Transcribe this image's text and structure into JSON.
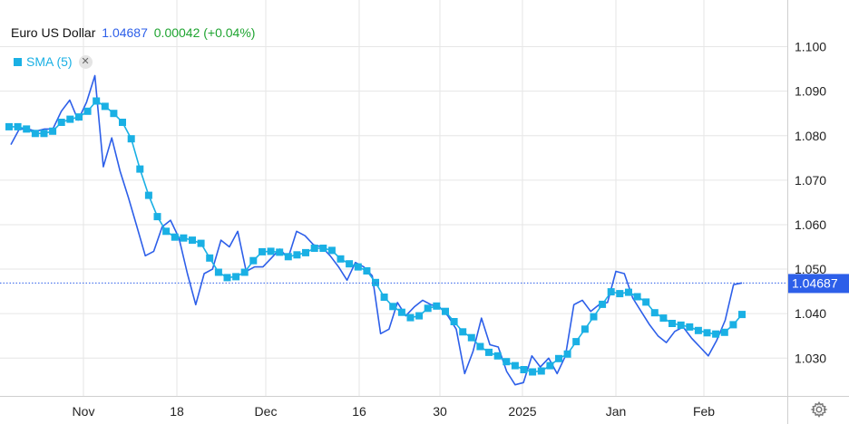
{
  "header": {
    "title": "Euro US Dollar",
    "price": "1.04687",
    "change": "0.00042 (+0.04%)"
  },
  "indicator": {
    "label": "SMA (5)",
    "close_icon": "close-icon"
  },
  "settings_icon": "gear-icon",
  "colors": {
    "price_line": "#2d5fe9",
    "sma": "#1ab0e4",
    "change_positive": "#1fa431",
    "grid": "#e6e6e6"
  },
  "chart_data": {
    "type": "line",
    "y_ticks": [
      "1.100",
      "1.090",
      "1.080",
      "1.070",
      "1.060",
      "1.050",
      "1.040",
      "1.030"
    ],
    "x_ticks": [
      "Nov",
      "18",
      "Dec",
      "16",
      "30",
      "2025",
      "Jan",
      "Feb"
    ],
    "ylim": [
      1.0215,
      1.1105
    ],
    "last_price_label": "1.04687",
    "grid": true,
    "series": [
      {
        "name": "Euro US Dollar",
        "style": "line",
        "values": [
          1.078,
          1.0815,
          1.0815,
          1.081,
          1.0815,
          1.0815,
          1.0855,
          1.088,
          1.0835,
          1.0875,
          1.0935,
          1.073,
          1.0795,
          1.072,
          1.066,
          1.0595,
          1.053,
          1.054,
          1.0595,
          1.061,
          1.057,
          1.049,
          1.042,
          1.049,
          1.05,
          1.0565,
          1.055,
          1.0585,
          1.0495,
          1.0505,
          1.0505,
          1.0525,
          1.0545,
          1.0525,
          1.0585,
          1.0575,
          1.0555,
          1.055,
          1.053,
          1.0505,
          1.0475,
          1.0515,
          1.0505,
          1.0485,
          1.0355,
          1.0365,
          1.0425,
          1.0395,
          1.0415,
          1.043,
          1.042,
          1.0415,
          1.0395,
          1.0365,
          1.0265,
          1.0315,
          1.039,
          1.033,
          1.0325,
          1.027,
          1.024,
          1.0245,
          1.0305,
          1.028,
          1.03,
          1.0265,
          1.0305,
          1.042,
          1.043,
          1.0405,
          1.042,
          1.0425,
          1.0495,
          1.049,
          1.0435,
          1.0405,
          1.0375,
          1.035,
          1.0335,
          1.036,
          1.037,
          1.0345,
          1.0325,
          1.0305,
          1.034,
          1.0385,
          1.0465,
          1.0469
        ]
      },
      {
        "name": "SMA (5)",
        "style": "markers",
        "values": [
          1.082,
          1.082,
          1.0815,
          1.0805,
          1.0805,
          1.081,
          1.083,
          1.0837,
          1.0842,
          1.0855,
          1.0878,
          1.0866,
          1.085,
          1.083,
          1.0793,
          1.0725,
          1.0666,
          1.0618,
          1.0585,
          1.0572,
          1.057,
          1.0565,
          1.0558,
          1.0525,
          1.0493,
          1.0481,
          1.0483,
          1.0493,
          1.0519,
          1.0539,
          1.054,
          1.0538,
          1.0528,
          1.0532,
          1.0537,
          1.0547,
          1.0547,
          1.0542,
          1.0523,
          1.0512,
          1.0505,
          1.0496,
          1.047,
          1.0437,
          1.0416,
          1.0403,
          1.0391,
          1.0395,
          1.0412,
          1.0417,
          1.0405,
          1.0382,
          1.0359,
          1.0346,
          1.0326,
          1.0313,
          1.0305,
          1.0292,
          1.0283,
          1.0274,
          1.0269,
          1.0271,
          1.0283,
          1.0299,
          1.0309,
          1.0337,
          1.0365,
          1.0393,
          1.0421,
          1.0449,
          1.0445,
          1.0448,
          1.0438,
          1.0426,
          1.0402,
          1.039,
          1.0378,
          1.0374,
          1.037,
          1.0362,
          1.0357,
          1.0354,
          1.0358,
          1.0375,
          1.0398
        ]
      }
    ]
  }
}
